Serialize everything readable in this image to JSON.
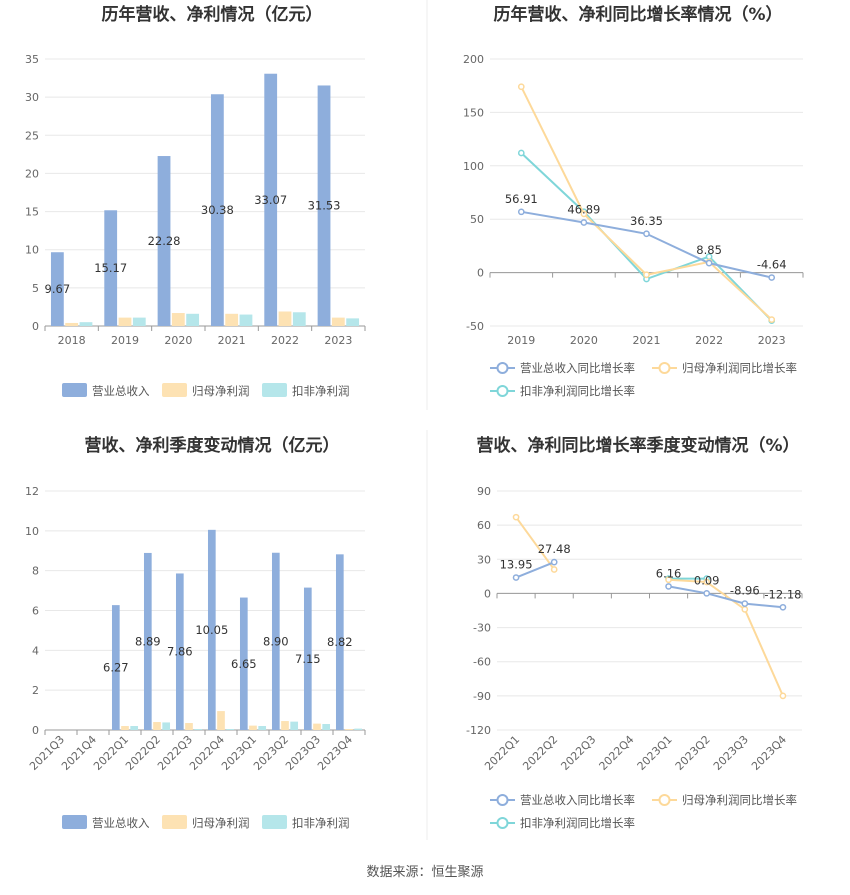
{
  "colors": {
    "revenue": "#8eaedc",
    "net_profit": "#fde2b3",
    "deducted_profit": "#b5e6ea",
    "revenue_line": "#8eaedc",
    "net_line": "#fdd99a",
    "deducted_line": "#7fd6d9"
  },
  "source": "数据来源：恒生聚源",
  "chart_data": [
    {
      "id": "annual-amounts",
      "type": "bar",
      "title": "历年营收、净利情况（亿元）",
      "categories": [
        "2018",
        "2019",
        "2020",
        "2021",
        "2022",
        "2023"
      ],
      "ylim": [
        0,
        35
      ],
      "yticks": [
        0,
        5,
        10,
        15,
        20,
        25,
        30,
        35
      ],
      "grid": true,
      "legend_placement": "bottom",
      "series": [
        {
          "name": "营业总收入",
          "color_key": "revenue",
          "values": [
            9.67,
            15.17,
            22.28,
            30.38,
            33.07,
            31.53
          ],
          "labels": [
            "9.67",
            "15.17",
            "22.28",
            "30.38",
            "33.07",
            "31.53"
          ]
        },
        {
          "name": "归母净利润",
          "color_key": "net_profit",
          "values": [
            0.4,
            1.1,
            1.7,
            1.6,
            1.9,
            1.1
          ]
        },
        {
          "name": "扣非净利润",
          "color_key": "deducted_profit",
          "values": [
            0.5,
            1.1,
            1.6,
            1.5,
            1.8,
            1.0
          ]
        }
      ]
    },
    {
      "id": "annual-growth",
      "type": "line",
      "title": "历年营收、净利同比增长率情况（%）",
      "categories": [
        "2019",
        "2020",
        "2021",
        "2022",
        "2023"
      ],
      "ylim": [
        -50,
        200
      ],
      "yticks": [
        -50,
        0,
        50,
        100,
        150,
        200
      ],
      "grid": true,
      "legend_placement": "bottom",
      "series": [
        {
          "name": "营业总收入同比增长率",
          "color_key": "revenue_line",
          "values": [
            56.91,
            46.89,
            36.35,
            8.85,
            -4.64
          ],
          "labels": [
            "56.91",
            "46.89",
            "36.35",
            "8.85",
            "-4.64"
          ]
        },
        {
          "name": "归母净利润同比增长率",
          "color_key": "net_line",
          "values": [
            174,
            55,
            -2,
            10,
            -44
          ]
        },
        {
          "name": "扣非净利润同比增长率",
          "color_key": "deducted_line",
          "values": [
            112,
            57,
            -6,
            15,
            -45
          ]
        }
      ]
    },
    {
      "id": "quarterly-amounts",
      "type": "bar",
      "title": "营收、净利季度变动情况（亿元）",
      "categories": [
        "2021Q3",
        "2021Q4",
        "2022Q1",
        "2022Q2",
        "2022Q3",
        "2022Q4",
        "2023Q1",
        "2023Q2",
        "2023Q3",
        "2023Q4"
      ],
      "ylim": [
        0,
        12
      ],
      "yticks": [
        0,
        2,
        4,
        6,
        8,
        10,
        12
      ],
      "grid": true,
      "legend_placement": "bottom",
      "series": [
        {
          "name": "营业总收入",
          "color_key": "revenue",
          "values": [
            null,
            null,
            6.27,
            8.89,
            7.86,
            10.05,
            6.65,
            8.9,
            7.15,
            8.82
          ],
          "labels": [
            "",
            "",
            "6.27",
            "8.89",
            "7.86",
            "10.05",
            "6.65",
            "8.90",
            "7.15",
            "8.82"
          ]
        },
        {
          "name": "归母净利润",
          "color_key": "net_profit",
          "values": [
            null,
            null,
            0.2,
            0.4,
            0.35,
            0.95,
            0.22,
            0.45,
            0.32,
            0.05
          ]
        },
        {
          "name": "扣非净利润",
          "color_key": "deducted_profit",
          "values": [
            null,
            null,
            0.2,
            0.38,
            0.05,
            0.05,
            0.2,
            0.42,
            0.3,
            0.07
          ]
        }
      ]
    },
    {
      "id": "quarterly-growth",
      "type": "line",
      "title": "营收、净利同比增长率季度变动情况（%）",
      "categories": [
        "2022Q1",
        "2022Q2",
        "2022Q3",
        "2022Q4",
        "2023Q1",
        "2023Q2",
        "2023Q3",
        "2023Q4"
      ],
      "ylim": [
        -120,
        90
      ],
      "yticks": [
        -120,
        -90,
        -60,
        -30,
        0,
        30,
        60,
        90
      ],
      "grid": true,
      "legend_placement": "bottom",
      "series": [
        {
          "name": "营业总收入同比增长率",
          "color_key": "revenue_line",
          "values": [
            13.95,
            27.48,
            null,
            null,
            6.16,
            0.09,
            -8.96,
            -12.18
          ],
          "labels": [
            "13.95",
            "27.48",
            "",
            "",
            "6.16",
            "0.09",
            "-8.96",
            "-12.18"
          ]
        },
        {
          "name": "归母净利润同比增长率",
          "color_key": "net_line",
          "values": [
            67,
            21,
            null,
            null,
            12,
            10,
            -14,
            -90
          ]
        },
        {
          "name": "扣非净利润同比增长率",
          "color_key": "deducted_line",
          "values": [
            null,
            null,
            null,
            null,
            13,
            13,
            null,
            null
          ]
        }
      ]
    }
  ]
}
